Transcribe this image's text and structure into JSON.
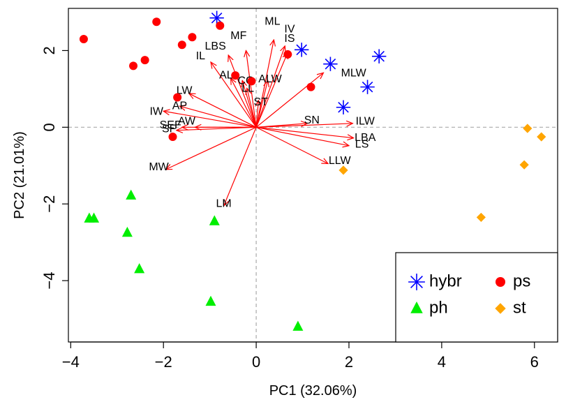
{
  "chart_data": {
    "type": "scatter",
    "title": "",
    "xlabel": "PC1 (32.06%)",
    "ylabel": "PC2 (21.01%)",
    "xlim": [
      -4.05,
      6.5
    ],
    "ylim": [
      -5.6,
      3.1
    ],
    "xticks": [
      -4,
      -2,
      0,
      2,
      4,
      6
    ],
    "yticks": [
      -4,
      -2,
      0,
      2
    ],
    "xtick_labels": [
      "−4",
      "−2",
      "0",
      "2",
      "4",
      "6"
    ],
    "ytick_labels": [
      "−4",
      "−2",
      "0",
      "2"
    ],
    "reference_lines": {
      "x": 0,
      "y": 0,
      "style": "dashed",
      "color": "#aaaaaa"
    },
    "series": [
      {
        "name": "hybr",
        "marker": "asterisk",
        "color": "#0000ff",
        "points": [
          [
            -0.85,
            2.85
          ],
          [
            0.98,
            2.02
          ],
          [
            1.6,
            1.65
          ],
          [
            2.65,
            1.85
          ],
          [
            2.4,
            1.05
          ],
          [
            1.88,
            0.52
          ]
        ]
      },
      {
        "name": "ps",
        "marker": "circle",
        "color": "#ff0000",
        "points": [
          [
            -3.72,
            2.3
          ],
          [
            -2.65,
            1.6
          ],
          [
            -2.4,
            1.75
          ],
          [
            -2.15,
            2.75
          ],
          [
            -1.6,
            2.15
          ],
          [
            -1.38,
            2.35
          ],
          [
            -0.78,
            2.65
          ],
          [
            -0.45,
            1.35
          ],
          [
            -0.1,
            1.2
          ],
          [
            -1.7,
            0.78
          ],
          [
            -1.8,
            -0.25
          ],
          [
            0.68,
            1.9
          ],
          [
            1.18,
            1.05
          ]
        ]
      },
      {
        "name": "ph",
        "marker": "triangle",
        "color": "#00ee00",
        "points": [
          [
            -3.6,
            -2.38
          ],
          [
            -3.5,
            -2.38
          ],
          [
            -2.7,
            -1.78
          ],
          [
            -2.78,
            -2.75
          ],
          [
            -2.52,
            -3.7
          ],
          [
            -0.9,
            -2.45
          ],
          [
            -0.98,
            -4.55
          ],
          [
            0.9,
            -5.2
          ]
        ]
      },
      {
        "name": "st",
        "marker": "diamond",
        "color": "#ffa500",
        "points": [
          [
            1.88,
            -1.12
          ],
          [
            4.85,
            -2.35
          ],
          [
            5.78,
            -0.98
          ],
          [
            5.85,
            -0.03
          ],
          [
            6.15,
            -0.25
          ]
        ]
      }
    ],
    "loadings": [
      {
        "label": "ML",
        "x": 0.38,
        "y": 2.28,
        "lx": 0.35,
        "ly": 2.75
      },
      {
        "label": "IV",
        "x": 0.62,
        "y": 2.12,
        "lx": 0.72,
        "ly": 2.55
      },
      {
        "label": "IS",
        "x": 0.68,
        "y": 1.95,
        "lx": 0.72,
        "ly": 2.3
      },
      {
        "label": "MF",
        "x": -0.22,
        "y": 2.0,
        "lx": -0.38,
        "ly": 2.38
      },
      {
        "label": "LBS",
        "x": -0.6,
        "y": 1.88,
        "lx": -0.88,
        "ly": 2.1
      },
      {
        "label": "IL",
        "x": -0.98,
        "y": 1.7,
        "lx": -1.2,
        "ly": 1.85
      },
      {
        "label": "AL",
        "x": -0.55,
        "y": 1.28,
        "lx": -0.65,
        "ly": 1.35
      },
      {
        "label": "CG",
        "x": -0.3,
        "y": 1.22,
        "lx": -0.22,
        "ly": 1.2
      },
      {
        "label": "ALW",
        "x": 0.25,
        "y": 1.22,
        "lx": 0.3,
        "ly": 1.25
      },
      {
        "label": "LL",
        "x": -0.2,
        "y": 1.02,
        "lx": -0.18,
        "ly": 1.0
      },
      {
        "label": "MLW",
        "x": 1.45,
        "y": 1.42,
        "lx": 2.1,
        "ly": 1.4
      },
      {
        "label": "LW",
        "x": -1.45,
        "y": 0.88,
        "lx": -1.55,
        "ly": 0.95
      },
      {
        "label": "ST",
        "x": 0.05,
        "y": 0.7,
        "lx": 0.1,
        "ly": 0.65
      },
      {
        "label": "AP",
        "x": -1.65,
        "y": 0.55,
        "lx": -1.65,
        "ly": 0.55
      },
      {
        "label": "IW",
        "x": -2.0,
        "y": 0.42,
        "lx": -2.15,
        "ly": 0.4
      },
      {
        "label": "SN",
        "x": 1.1,
        "y": 0.1,
        "lx": 1.2,
        "ly": 0.17
      },
      {
        "label": "ILW",
        "x": 2.08,
        "y": 0.1,
        "lx": 2.35,
        "ly": 0.15
      },
      {
        "label": "SEF",
        "x": -1.6,
        "y": 0.0,
        "lx": -1.85,
        "ly": 0.05
      },
      {
        "label": "AW",
        "x": -1.32,
        "y": 0.0,
        "lx": -1.5,
        "ly": 0.15
      },
      {
        "label": "SF",
        "x": -1.72,
        "y": -0.08,
        "lx": -1.88,
        "ly": -0.05
      },
      {
        "label": "LBA",
        "x": 2.1,
        "y": -0.28,
        "lx": 2.35,
        "ly": -0.28
      },
      {
        "label": "LS",
        "x": 2.0,
        "y": -0.48,
        "lx": 2.28,
        "ly": -0.45
      },
      {
        "label": "LLW",
        "x": 1.55,
        "y": -0.95,
        "lx": 1.8,
        "ly": -0.88
      },
      {
        "label": "MW",
        "x": -1.95,
        "y": -1.1,
        "lx": -2.1,
        "ly": -1.05
      },
      {
        "label": "LM",
        "x": -0.7,
        "y": -2.05,
        "lx": -0.7,
        "ly": -2.0
      }
    ],
    "legend": {
      "placement": "bottom-right",
      "entries": [
        {
          "label": "hybr",
          "marker": "asterisk",
          "color": "#0000ff"
        },
        {
          "label": "ps",
          "marker": "circle",
          "color": "#ff0000"
        },
        {
          "label": "ph",
          "marker": "triangle",
          "color": "#00ee00"
        },
        {
          "label": "st",
          "marker": "diamond",
          "color": "#ffa500"
        }
      ]
    },
    "arrow_color": "#ff0000"
  }
}
